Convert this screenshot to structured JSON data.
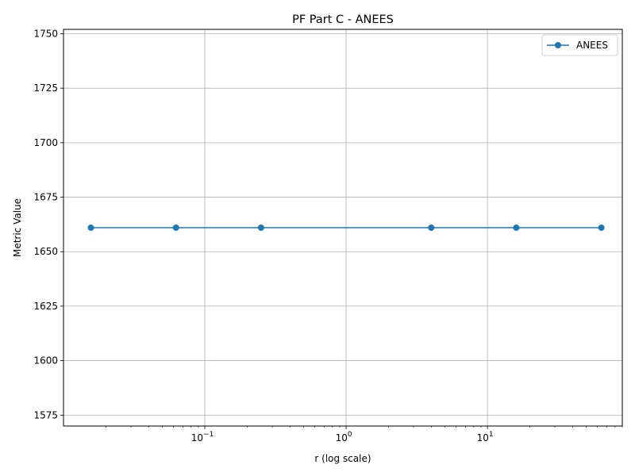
{
  "chart_data": {
    "type": "line",
    "title": "PF Part C - ANEES",
    "xlabel": "r (log scale)",
    "ylabel": "Metric Value",
    "xscale": "log",
    "xlim": [
      0.01,
      90
    ],
    "ylim": [
      1570,
      1752
    ],
    "grid": true,
    "legend_position": "top-right",
    "x_ticks": [
      {
        "base": "10",
        "exp": "−1",
        "value": 0.1
      },
      {
        "base": "10",
        "exp": "0",
        "value": 1
      },
      {
        "base": "10",
        "exp": "1",
        "value": 10
      }
    ],
    "y_ticks": [
      1575,
      1600,
      1625,
      1650,
      1675,
      1700,
      1725,
      1750
    ],
    "series": [
      {
        "name": "ANEES",
        "color": "#1f77b4",
        "marker": "circle",
        "x": [
          0.015625,
          0.0625,
          0.25,
          4,
          16,
          64
        ],
        "y": [
          1661,
          1661,
          1661,
          1661,
          1661,
          1661
        ]
      }
    ]
  }
}
